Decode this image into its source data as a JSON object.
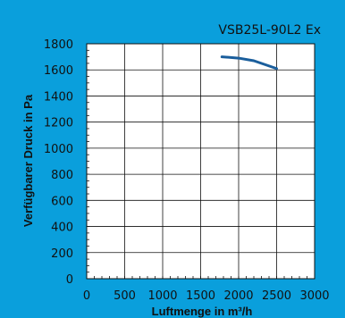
{
  "chart_data": {
    "type": "line",
    "title": "VSB25L-90L2 Ex",
    "xlabel": "Luftmenge in m³/h",
    "ylabel": "Verfügbarer Druck in Pa",
    "xlim": [
      0,
      3000
    ],
    "ylim": [
      0,
      1800
    ],
    "x_ticks": [
      0,
      500,
      1000,
      1500,
      2000,
      2500,
      3000
    ],
    "y_ticks": [
      0,
      200,
      400,
      600,
      800,
      1000,
      1200,
      1400,
      1600,
      1800
    ],
    "grid": true,
    "series": [
      {
        "x": [
          1780,
          2000,
          2200,
          2500
        ],
        "y": [
          1700,
          1690,
          1670,
          1610
        ]
      }
    ],
    "colors": {
      "background": "#0a9fdc",
      "plot_area": "#ffffff",
      "line": "#1a5e9c"
    }
  }
}
